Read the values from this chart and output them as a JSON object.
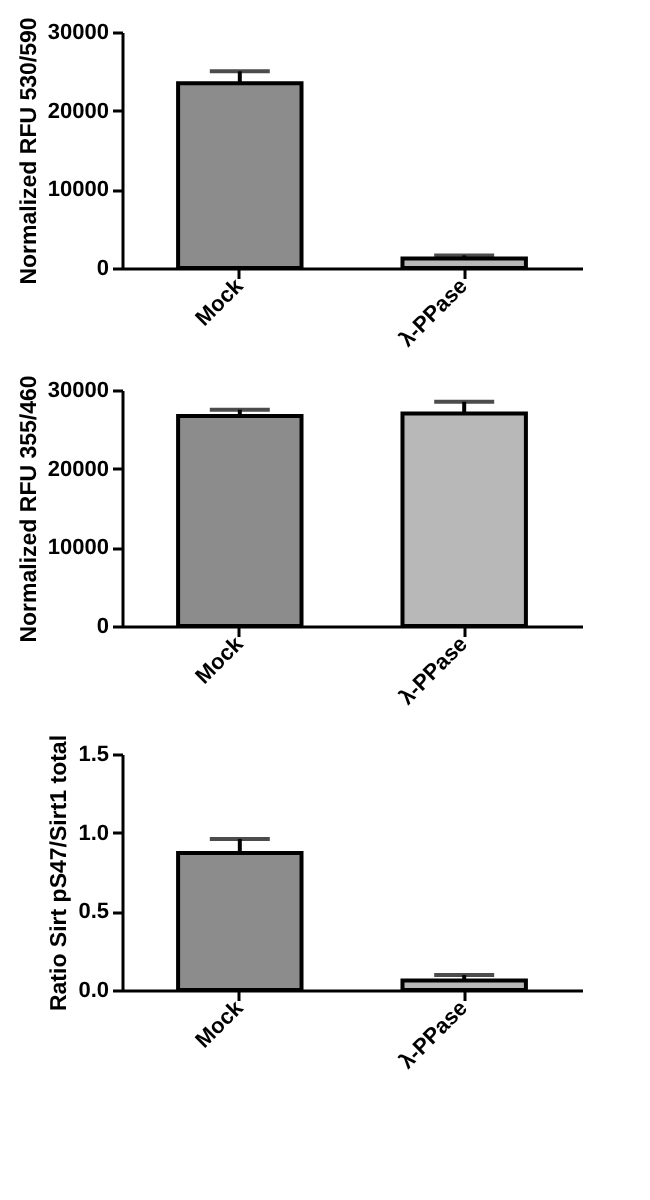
{
  "chart_data": [
    {
      "type": "bar",
      "categories": [
        "Mock",
        "λ-PPase"
      ],
      "values": [
        23500,
        1200
      ],
      "errors": [
        1500,
        400
      ],
      "colors": [
        "#8c8c8c",
        "#b8b8b8"
      ],
      "ylabel": "Normalized RFU 530/590",
      "ylim": [
        0,
        30000
      ],
      "yticks": [
        0,
        10000,
        20000,
        30000
      ]
    },
    {
      "type": "bar",
      "categories": [
        "Mock",
        "λ-PPase"
      ],
      "values": [
        26700,
        27000
      ],
      "errors": [
        800,
        1500
      ],
      "colors": [
        "#8c8c8c",
        "#b8b8b8"
      ],
      "ylabel": "Normalized RFU 355/460",
      "ylim": [
        0,
        30000
      ],
      "yticks": [
        0,
        10000,
        20000,
        30000
      ]
    },
    {
      "type": "bar",
      "categories": [
        "Mock",
        "λ-PPase"
      ],
      "values": [
        0.87,
        0.06
      ],
      "errors": [
        0.09,
        0.035
      ],
      "colors": [
        "#8c8c8c",
        "#b8b8b8"
      ],
      "ylabel": "Ratio Sirt pS47/Sirt1 total",
      "ylim": [
        0,
        1.5
      ],
      "yticks": [
        {
          "value": 0,
          "label": "0.0"
        },
        {
          "value": 0.5,
          "label": "0.5"
        },
        {
          "value": 1,
          "label": "1.0"
        },
        {
          "value": 1.5,
          "label": "1.5"
        }
      ]
    }
  ]
}
